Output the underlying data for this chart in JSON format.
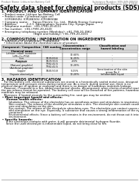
{
  "header_left": "Product Name: Lithium Ion Battery Cell",
  "header_right_line1": "Substance Number: SDS-049-008/10",
  "header_right_line2": "Established / Revision: Dec.7.2010",
  "title": "Safety data sheet for chemical products (SDS)",
  "section1_title": "1. PRODUCT AND COMPANY IDENTIFICATION",
  "section1_lines": [
    "• Product name: Lithium Ion Battery Cell",
    "• Product code: Cylindrical-type cell",
    "   (ICR18650U, ICR18650U, ICR18650A)",
    "• Company name:     Sanyo Electric Co., Ltd.,  Mobile Energy Company",
    "• Address:           2-2-1  Kamionokani, Sumoto-City, Hyogo, Japan",
    "• Telephone number:  +81-(799)-20-4111",
    "• Fax number:  +81-(799)-20-4120",
    "• Emergency telephone number (Weekday): +81-799-20-3962",
    "                                    (Night and holiday): +81-799-20-4101"
  ],
  "section2_title": "2. COMPOSITION / INFORMATION ON INGREDIENTS",
  "section2_intro": "• Substance or preparation: Preparation",
  "section2_sub": "  • Information about the chemical nature of product:",
  "table_headers": [
    "Component / Composition",
    "CAS number",
    "Concentration /\nConcentration range",
    "Classification and\nhazard labeling"
  ],
  "table_sub_header": "Chemical name",
  "table_rows": [
    [
      "Lithium cobalt tantalate\n(LiMn-Co-PO4)",
      "-",
      "30-60%",
      "-"
    ],
    [
      "Iron",
      "7439-89-6",
      "15-25%",
      "-"
    ],
    [
      "Aluminum",
      "7429-90-5",
      "2-6%",
      "-"
    ],
    [
      "Graphite\n(Natural graphite)\n(Artificial graphite)",
      "7782-42-5\n7782-42-5",
      "10-20%",
      "-"
    ],
    [
      "Copper",
      "7440-50-8",
      "5-15%",
      "Sensitization of the skin\ngroup No.2"
    ],
    [
      "Organic electrolyte",
      "-",
      "10-20%",
      "Inflammable liquid"
    ]
  ],
  "section3_title": "3. HAZARDS IDENTIFICATION",
  "section3_para": [
    "   For the battery cell, chemical substances are stored in a hermetically sealed metal case, designed to withstand",
    "temperature and pressure-stress during normal use. As a result, during normal use, there is no",
    "physical danger of ignition or explosion and there is no danger of hazardous materials leakage.",
    "   However, if exposed to a fire, added mechanical shocks, decomposed, when electro-chemical reactions occur,",
    "the gas release cannot be operated. The battery cell case will be breached of fire patterns, hazardous",
    "materials may be released.",
    "   Moreover, if heated strongly by the surrounding fire, soot gas may be emitted."
  ],
  "section3_bullet1": "• Most important hazard and effects:",
  "section3_human": "   Human health effects:",
  "section3_inhalation": "      Inhalation: The release of the electrolyte has an anesthesia action and stimulates in respiratory tract.",
  "section3_skin": [
    "      Skin contact: The release of the electrolyte stimulates a skin. The electrolyte skin contact causes a",
    "      sore and stimulation on the skin."
  ],
  "section3_eye": [
    "      Eye contact: The release of the electrolyte stimulates eyes. The electrolyte eye contact causes a sore",
    "      and stimulation on the eye. Especially, a substance that causes a strong inflammation of the eye is",
    "      contained."
  ],
  "section3_env": [
    "      Environmental effects: Since a battery cell remains in the environment, do not throw out it into the",
    "      environment."
  ],
  "section3_bullet2": "• Specific hazards:",
  "section3_specific": [
    "   If the electrolyte contacts with water, it will generate detrimental hydrogen fluoride.",
    "   Since the used electrolyte is inflammable liquid, do not bring close to fire."
  ],
  "bg_color": "#ffffff",
  "text_color": "#000000",
  "gray_text": "#555555",
  "table_header_bg": "#d8d8d8",
  "table_alt_bg": "#f0f0f0"
}
